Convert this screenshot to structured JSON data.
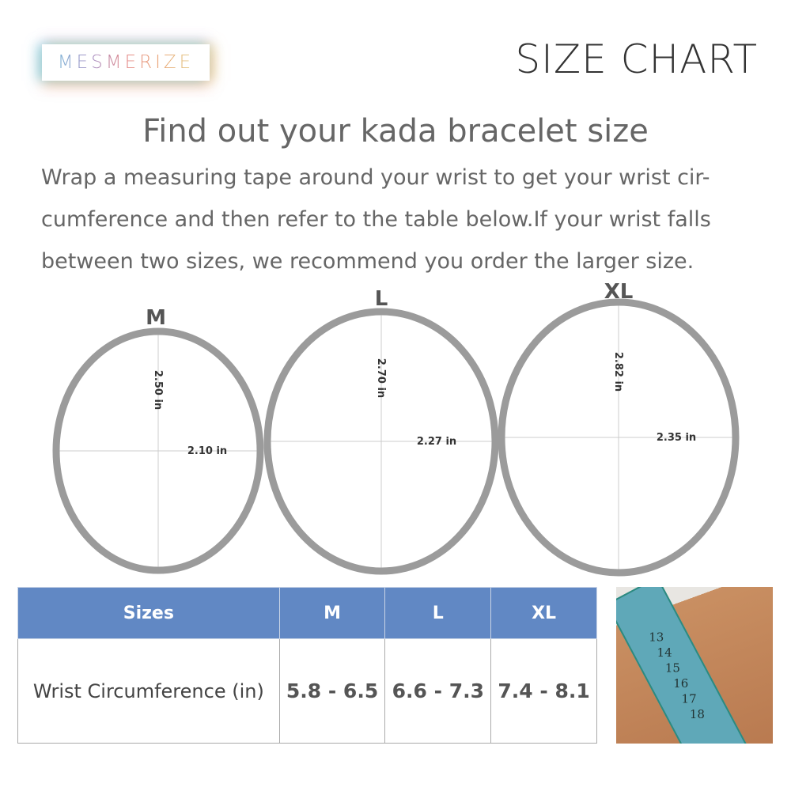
{
  "brand": {
    "logo_text": "MESMERIZE"
  },
  "header": {
    "title": "SIZE CHART"
  },
  "heading": "Find out your kada bracelet size",
  "description": "Wrap a measuring tape around your wrist to get your wrist cir-cumference and then refer to the table below.If your wrist falls between two sizes, we recommend you order the larger size.",
  "bracelets": [
    {
      "size": "M",
      "height": "2.50 in",
      "width": "2.10 in"
    },
    {
      "size": "L",
      "height": "2.70 in",
      "width": "2.27 in"
    },
    {
      "size": "XL",
      "height": "2.82 in",
      "width": "2.35 in"
    }
  ],
  "table": {
    "headers": [
      "Sizes",
      "M",
      "L",
      "XL"
    ],
    "row_label": "Wrist Circumference (in)",
    "values": [
      "5.8 - 6.5",
      "6.6 - 7.3",
      "7.4 - 8.1"
    ],
    "header_color": "#6188c4"
  },
  "photo": {
    "tape_numbers": [
      "13",
      "14",
      "15",
      "16",
      "17",
      "18"
    ]
  }
}
